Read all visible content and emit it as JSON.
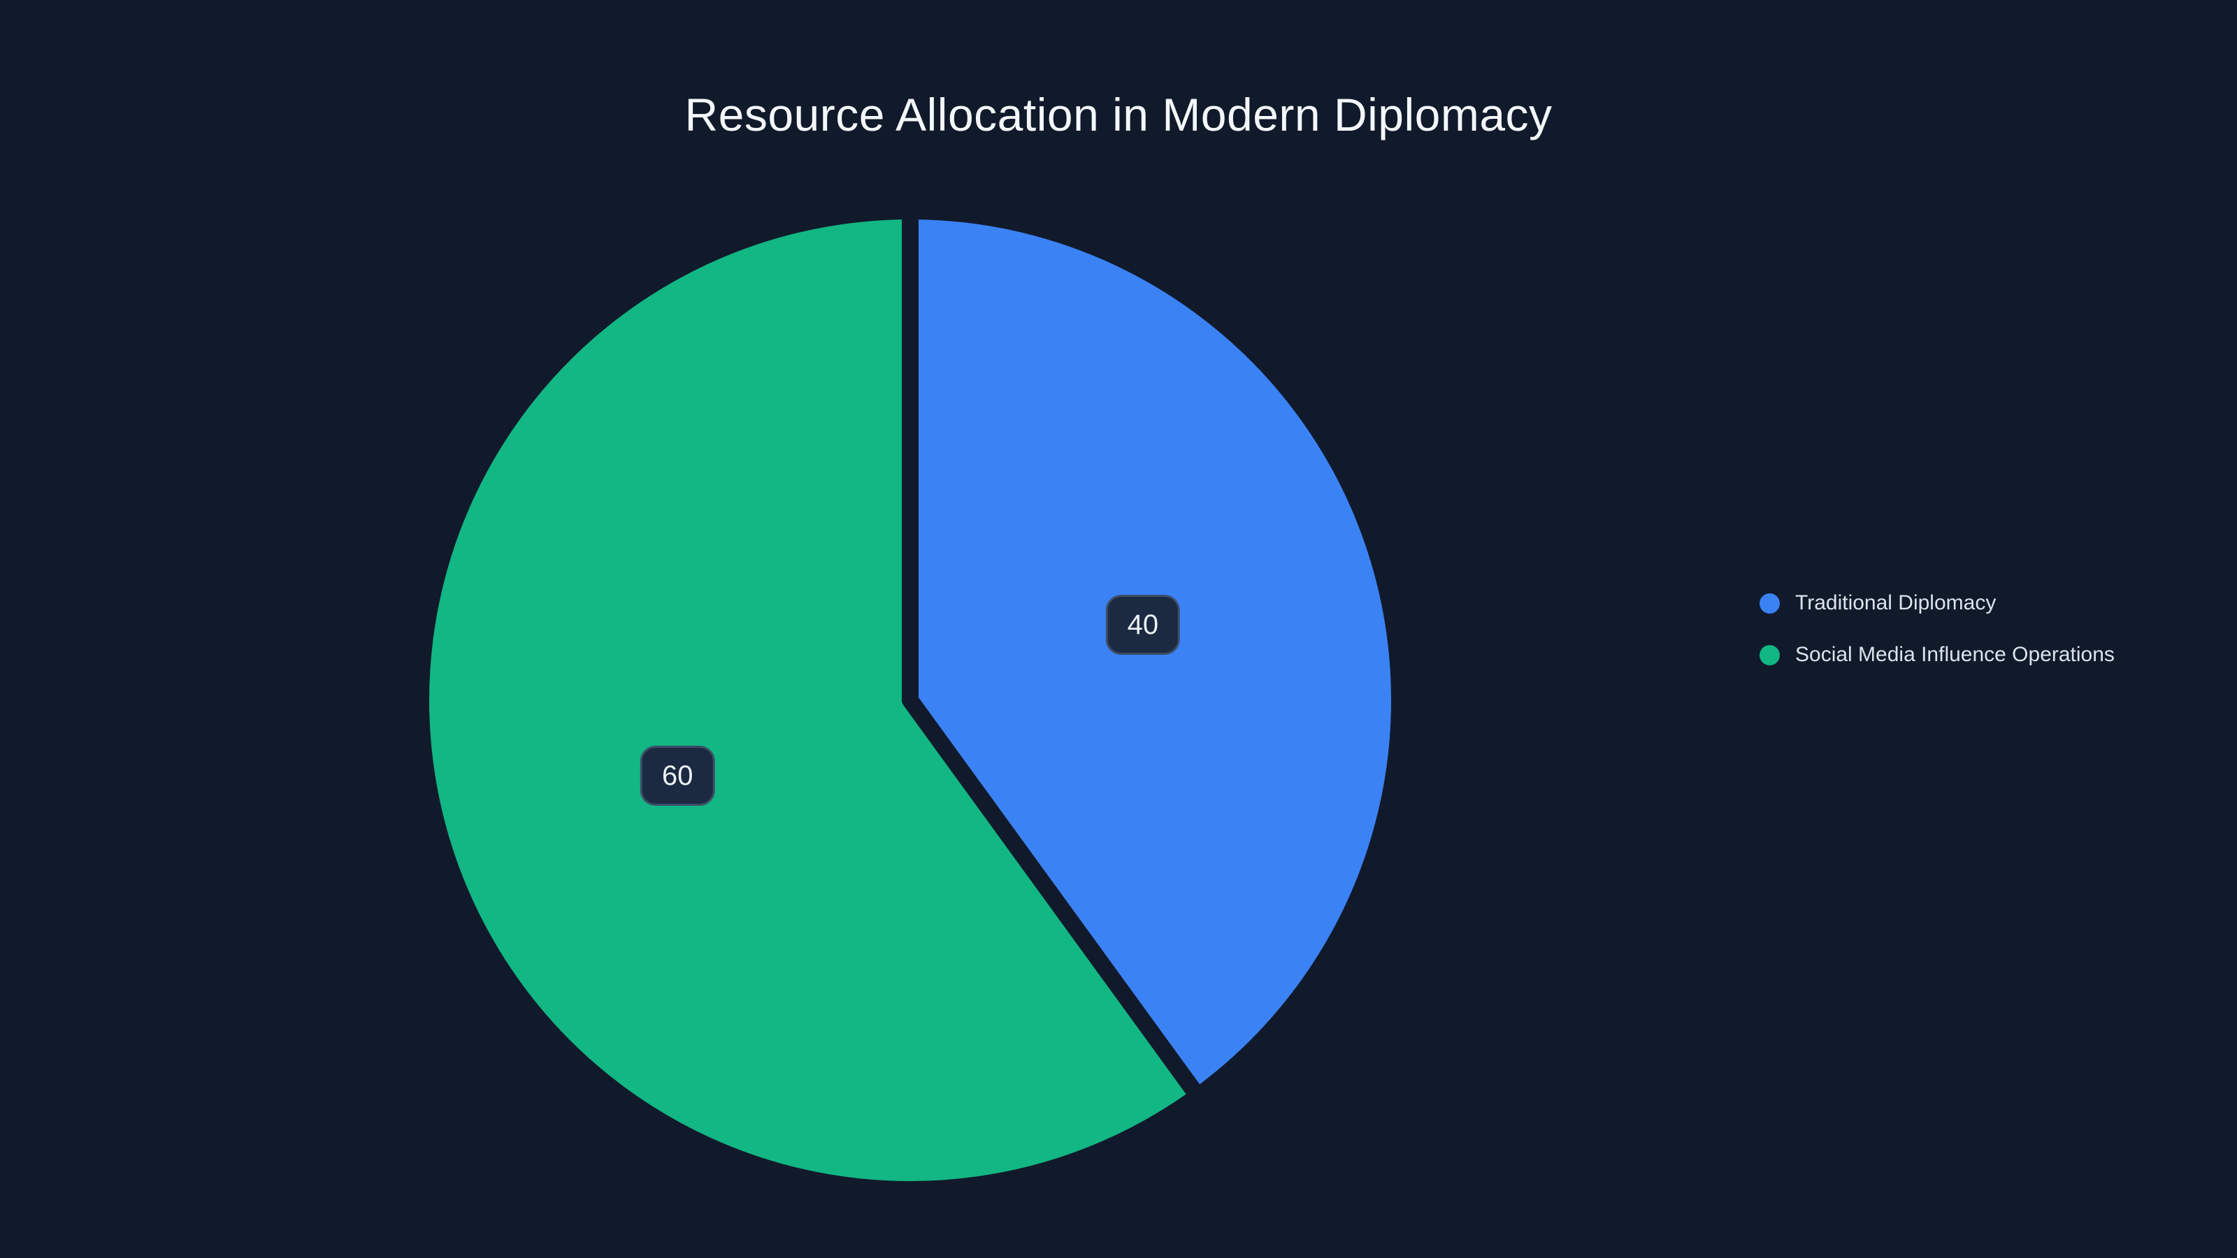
{
  "page": {
    "background": "#111a2b",
    "title_color": "#f4f7fa",
    "legend_text_color": "#dce3ec"
  },
  "title": {
    "text": "Resource Allocation in Modern Diplomacy"
  },
  "legend": {
    "position": "right",
    "items": [
      {
        "label": "Traditional Diplomacy",
        "color": "#3b82f5"
      },
      {
        "label": "Social Media Influence Operations",
        "color": "#12b783"
      }
    ]
  },
  "chart_data": {
    "type": "pie",
    "title": "Resource Allocation in Modern Diplomacy",
    "categories": [
      "Traditional Diplomacy",
      "Social Media Influence Operations"
    ],
    "values": [
      40,
      60
    ],
    "series": [
      {
        "name": "Traditional Diplomacy",
        "value": 40,
        "label": "40",
        "color": "#3b82f5"
      },
      {
        "name": "Social Media Influence Operations",
        "value": 60,
        "label": "60",
        "color": "#12b783"
      }
    ],
    "start_angle": "top",
    "direction": "clockwise",
    "label_position": "inside-half-radius",
    "legend_position": "right",
    "slice_gap_color": "#111a2b",
    "label_box": {
      "background": "#1b2a41",
      "border_color": "#3d4e68",
      "text_color": "#edf1f6"
    }
  }
}
